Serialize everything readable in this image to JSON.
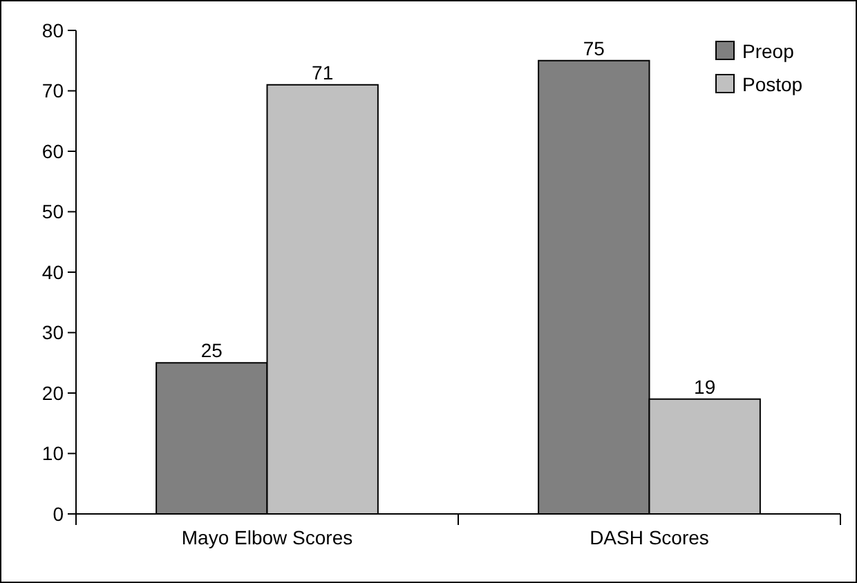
{
  "chart_data": {
    "type": "bar",
    "categories": [
      "Mayo Elbow Scores",
      "DASH Scores"
    ],
    "series": [
      {
        "name": "Preop",
        "color": "#808080",
        "values": [
          25,
          75
        ]
      },
      {
        "name": "Postop",
        "color": "#c0c0c0",
        "values": [
          71,
          19
        ]
      }
    ],
    "ylim": [
      0,
      80
    ],
    "yticks": [
      0,
      10,
      20,
      30,
      40,
      50,
      60,
      70,
      80
    ],
    "grid": false,
    "legend": "top right",
    "data_labels": true
  }
}
